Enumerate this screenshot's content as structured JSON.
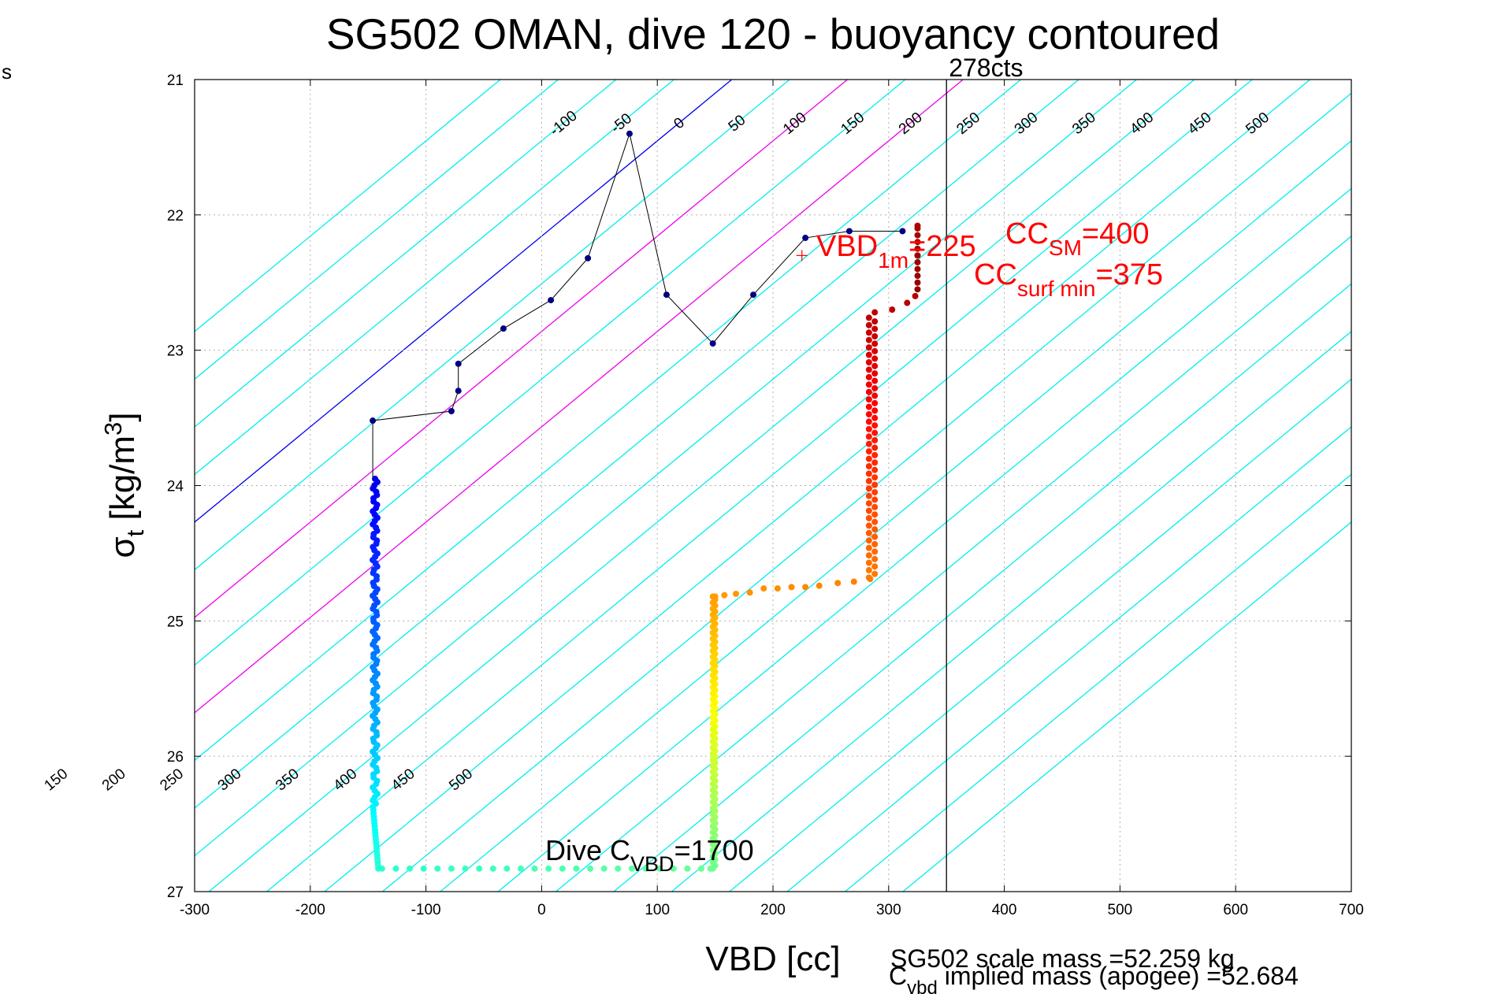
{
  "chart_data": {
    "type": "scatter",
    "title": "SG502 OMAN, dive 120 - buoyancy contoured",
    "xlabel": "VBD [cc]",
    "ylabel_main": "σ",
    "ylabel_sub": "t",
    "ylabel_rest": " [kg/m",
    "ylabel_sup": "3",
    "ylabel_end": "]",
    "xlim": [
      -300,
      700
    ],
    "ylim": [
      21,
      27
    ],
    "y_reversed": true,
    "grid": true,
    "x_ticks": [
      -300,
      -200,
      -100,
      0,
      100,
      200,
      300,
      400,
      500,
      600,
      700
    ],
    "x_tick_labels": [
      "-300",
      "-200",
      "-100",
      "0",
      "100",
      "200",
      "300",
      "400",
      "500",
      "600",
      "700"
    ],
    "y_ticks": [
      21,
      22,
      23,
      24,
      25,
      26,
      27
    ],
    "y_tick_labels": [
      "21",
      "22",
      "23",
      "24",
      "25",
      "26",
      "27"
    ],
    "left_margin_text": "s",
    "buoyancy_contours": {
      "slope_cc_per_sigma": -142,
      "reference": {
        "level": 0,
        "vbd_at_sigma": [
          -300,
          24.27
        ]
      },
      "levels": [
        -200,
        -150,
        -100,
        -50,
        0,
        50,
        100,
        150,
        200,
        250,
        300,
        350,
        400,
        450,
        500,
        550,
        600,
        650,
        700,
        750,
        800,
        850,
        900,
        950,
        1000
      ],
      "zero_color": "#0000ee",
      "hundred_color": "#ee00ee",
      "default_color": "#00eeee",
      "magenta_levels": [
        100,
        200
      ],
      "blue_levels": [
        0
      ],
      "labels_upper": {
        "sigma": 21.35,
        "levels": [
          "-100",
          "-50",
          "0",
          "50",
          "100",
          "150",
          "200",
          "250",
          "300",
          "350",
          "400",
          "450",
          "500"
        ]
      },
      "labels_lower": {
        "sigma": 26.2,
        "levels": [
          "150",
          "200",
          "250",
          "300",
          "350",
          "400",
          "450",
          "500"
        ]
      }
    },
    "descent": {
      "color": "#000080",
      "line_color": "#000000",
      "points": [
        [
          -146,
          23.52
        ],
        [
          -78,
          23.45
        ],
        [
          -72,
          23.3
        ],
        [
          -72,
          23.1
        ],
        [
          -33,
          22.84
        ],
        [
          8,
          22.63
        ],
        [
          40,
          22.32
        ],
        [
          76,
          21.4
        ],
        [
          108,
          22.59
        ],
        [
          148,
          22.95
        ],
        [
          183,
          22.59
        ],
        [
          228,
          22.17
        ],
        [
          266,
          22.12
        ],
        [
          312,
          22.12
        ]
      ]
    },
    "deep_profile": {
      "descent_column": {
        "vbd": [
          -146,
          -142
        ],
        "sigma_range": [
          23.95,
          26.83
        ]
      },
      "bottom_row": {
        "sigma": 26.83,
        "vbd": [
          -138,
          -126,
          -114,
          -102,
          -90,
          -78,
          -66,
          -54,
          -42,
          -30,
          -18,
          -6,
          6,
          18,
          30,
          42,
          54,
          66,
          78,
          90,
          102,
          114,
          126,
          138,
          146
        ]
      },
      "ascent_column": {
        "vbd": [
          148,
          150
        ],
        "sigma_range": [
          24.82,
          26.83
        ]
      },
      "step": [
        [
          150,
          24.82
        ],
        [
          158,
          24.81
        ],
        [
          168,
          24.8
        ],
        [
          180,
          24.79
        ],
        [
          192,
          24.76
        ],
        [
          204,
          24.76
        ],
        [
          216,
          24.75
        ],
        [
          228,
          24.75
        ],
        [
          240,
          24.74
        ],
        [
          256,
          24.72
        ],
        [
          270,
          24.71
        ],
        [
          284,
          24.69
        ]
      ],
      "upper_column": {
        "vbd": [
          283,
          288
        ],
        "sigma_range": [
          22.76,
          24.68
        ]
      },
      "top": [
        [
          288,
          22.72
        ],
        [
          303,
          22.7
        ],
        [
          316,
          22.65
        ],
        [
          323,
          22.6
        ],
        [
          325,
          22.3
        ],
        [
          325,
          22.08
        ]
      ]
    },
    "vertical_line": {
      "x": 350,
      "label": "278cts"
    },
    "annotations": {
      "vbd1m": {
        "main": "VBD",
        "sub": "1m",
        "value": "=225",
        "x": 225,
        "sigma": 22.3
      },
      "cc_sm": {
        "main": "CC",
        "sub": "SM",
        "value": "=400"
      },
      "cc_surf": {
        "main": "CC",
        "sub": "surf min",
        "value": "=375"
      },
      "dive_c": {
        "main": "Dive C",
        "sub": "VBD",
        "value": "=1700"
      }
    },
    "footer": {
      "line1": "SG502 scale mass =52.259 kg",
      "line2_main": "C",
      "line2_sub": "vbd",
      "line2_rest": " implied mass (apogee) =52.684"
    },
    "colors": {
      "annotation": "#ff0000",
      "axis": "#000000",
      "grid": "#b0b0b0"
    }
  }
}
